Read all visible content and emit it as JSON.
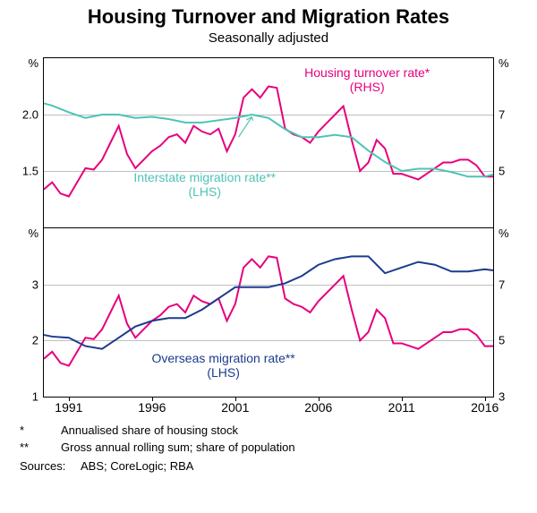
{
  "title": "Housing Turnover and Migration Rates",
  "subtitle": "Seasonally adjusted",
  "x_axis": {
    "min": 1989.5,
    "max": 2016.5,
    "ticks": [
      1991,
      1996,
      2001,
      2006,
      2011,
      2016
    ]
  },
  "panels": [
    {
      "id": "top",
      "left_axis": {
        "unit": "%",
        "min": 1.0,
        "max": 2.5,
        "ticks": [
          1.5,
          2.0
        ]
      },
      "right_axis": {
        "unit": "%",
        "min": 3.0,
        "max": 9.0,
        "ticks": [
          5,
          7
        ]
      },
      "gridlines_pct_from_top": [
        33.33,
        66.67
      ],
      "series": [
        {
          "name": "Housing turnover rate* (RHS)",
          "label_html": "Housing turnover rate*<br>(RHS)",
          "axis": "right",
          "color": "#e6007e",
          "width": 2,
          "label_pos": {
            "left_pct": 58,
            "top_pct": 4
          },
          "points": [
            [
              1989.5,
              4.35
            ],
            [
              1990,
              4.6
            ],
            [
              1990.5,
              4.2
            ],
            [
              1991,
              4.1
            ],
            [
              1991.5,
              4.6
            ],
            [
              1992,
              5.1
            ],
            [
              1992.5,
              5.05
            ],
            [
              1993,
              5.4
            ],
            [
              1993.5,
              6.0
            ],
            [
              1994,
              6.6
            ],
            [
              1994.5,
              5.6
            ],
            [
              1995,
              5.1
            ],
            [
              1995.5,
              5.4
            ],
            [
              1996,
              5.7
            ],
            [
              1996.5,
              5.9
            ],
            [
              1997,
              6.2
            ],
            [
              1997.5,
              6.3
            ],
            [
              1998,
              6.0
            ],
            [
              1998.5,
              6.6
            ],
            [
              1999,
              6.4
            ],
            [
              1999.5,
              6.3
            ],
            [
              2000,
              6.5
            ],
            [
              2000.5,
              5.7
            ],
            [
              2001,
              6.3
            ],
            [
              2001.5,
              7.6
            ],
            [
              2002,
              7.9
            ],
            [
              2002.5,
              7.6
            ],
            [
              2003,
              8.0
            ],
            [
              2003.5,
              7.95
            ],
            [
              2004,
              6.5
            ],
            [
              2004.5,
              6.3
            ],
            [
              2005,
              6.2
            ],
            [
              2005.5,
              6.0
            ],
            [
              2006,
              6.4
            ],
            [
              2006.5,
              6.7
            ],
            [
              2007,
              7.0
            ],
            [
              2007.5,
              7.3
            ],
            [
              2008,
              6.1
            ],
            [
              2008.5,
              5.0
            ],
            [
              2009,
              5.3
            ],
            [
              2009.5,
              6.1
            ],
            [
              2010,
              5.8
            ],
            [
              2010.5,
              4.9
            ],
            [
              2011,
              4.9
            ],
            [
              2011.5,
              4.8
            ],
            [
              2012,
              4.7
            ],
            [
              2012.5,
              4.9
            ],
            [
              2013,
              5.1
            ],
            [
              2013.5,
              5.3
            ],
            [
              2014,
              5.3
            ],
            [
              2014.5,
              5.4
            ],
            [
              2015,
              5.4
            ],
            [
              2015.5,
              5.2
            ],
            [
              2016,
              4.8
            ],
            [
              2016.5,
              4.8
            ]
          ]
        },
        {
          "name": "Interstate migration rate** (LHS)",
          "label_html": "Interstate migration rate**<br>(LHS)",
          "axis": "left",
          "color": "#4ec3b5",
          "width": 2,
          "label_pos": {
            "left_pct": 20,
            "top_pct": 66
          },
          "arrow": {
            "from": [
              2001.2,
              1.8
            ],
            "to": [
              2002.0,
              1.98
            ]
          },
          "points": [
            [
              1989.5,
              2.1
            ],
            [
              1990,
              2.08
            ],
            [
              1991,
              2.02
            ],
            [
              1992,
              1.97
            ],
            [
              1993,
              2.0
            ],
            [
              1994,
              2.0
            ],
            [
              1995,
              1.97
            ],
            [
              1996,
              1.98
            ],
            [
              1997,
              1.96
            ],
            [
              1998,
              1.93
            ],
            [
              1999,
              1.93
            ],
            [
              2000,
              1.95
            ],
            [
              2001,
              1.97
            ],
            [
              2002,
              2.0
            ],
            [
              2003,
              1.97
            ],
            [
              2004,
              1.87
            ],
            [
              2005,
              1.8
            ],
            [
              2006,
              1.8
            ],
            [
              2007,
              1.82
            ],
            [
              2008,
              1.8
            ],
            [
              2009,
              1.68
            ],
            [
              2010,
              1.58
            ],
            [
              2011,
              1.5
            ],
            [
              2012,
              1.52
            ],
            [
              2013,
              1.52
            ],
            [
              2014,
              1.49
            ],
            [
              2015,
              1.45
            ],
            [
              2016,
              1.45
            ],
            [
              2016.5,
              1.47
            ]
          ]
        }
      ]
    },
    {
      "id": "bottom",
      "left_axis": {
        "unit": "%",
        "min": 1.0,
        "max": 4.0,
        "ticks": [
          1,
          2,
          3
        ]
      },
      "right_axis": {
        "unit": "%",
        "min": 3.0,
        "max": 9.0,
        "ticks": [
          3,
          5,
          7
        ]
      },
      "gridlines_pct_from_top": [
        33.33,
        66.67
      ],
      "series": [
        {
          "name": "Housing turnover rate (RHS) bottom",
          "axis": "right",
          "color": "#e6007e",
          "width": 2,
          "points": [
            [
              1989.5,
              4.35
            ],
            [
              1990,
              4.6
            ],
            [
              1990.5,
              4.2
            ],
            [
              1991,
              4.1
            ],
            [
              1991.5,
              4.6
            ],
            [
              1992,
              5.1
            ],
            [
              1992.5,
              5.05
            ],
            [
              1993,
              5.4
            ],
            [
              1993.5,
              6.0
            ],
            [
              1994,
              6.6
            ],
            [
              1994.5,
              5.6
            ],
            [
              1995,
              5.1
            ],
            [
              1995.5,
              5.4
            ],
            [
              1996,
              5.7
            ],
            [
              1996.5,
              5.9
            ],
            [
              1997,
              6.2
            ],
            [
              1997.5,
              6.3
            ],
            [
              1998,
              6.0
            ],
            [
              1998.5,
              6.6
            ],
            [
              1999,
              6.4
            ],
            [
              1999.5,
              6.3
            ],
            [
              2000,
              6.5
            ],
            [
              2000.5,
              5.7
            ],
            [
              2001,
              6.3
            ],
            [
              2001.5,
              7.6
            ],
            [
              2002,
              7.9
            ],
            [
              2002.5,
              7.6
            ],
            [
              2003,
              8.0
            ],
            [
              2003.5,
              7.95
            ],
            [
              2004,
              6.5
            ],
            [
              2004.5,
              6.3
            ],
            [
              2005,
              6.2
            ],
            [
              2005.5,
              6.0
            ],
            [
              2006,
              6.4
            ],
            [
              2006.5,
              6.7
            ],
            [
              2007,
              7.0
            ],
            [
              2007.5,
              7.3
            ],
            [
              2008,
              6.1
            ],
            [
              2008.5,
              5.0
            ],
            [
              2009,
              5.3
            ],
            [
              2009.5,
              6.1
            ],
            [
              2010,
              5.8
            ],
            [
              2010.5,
              4.9
            ],
            [
              2011,
              4.9
            ],
            [
              2011.5,
              4.8
            ],
            [
              2012,
              4.7
            ],
            [
              2012.5,
              4.9
            ],
            [
              2013,
              5.1
            ],
            [
              2013.5,
              5.3
            ],
            [
              2014,
              5.3
            ],
            [
              2014.5,
              5.4
            ],
            [
              2015,
              5.4
            ],
            [
              2015.5,
              5.2
            ],
            [
              2016,
              4.8
            ],
            [
              2016.5,
              4.8
            ]
          ]
        },
        {
          "name": "Overseas migration rate** (LHS)",
          "label_html": "Overseas migration rate**<br>(LHS)",
          "axis": "left",
          "color": "#1b3b8c",
          "width": 2,
          "label_pos": {
            "left_pct": 24,
            "top_pct": 73
          },
          "points": [
            [
              1989.5,
              2.1
            ],
            [
              1990,
              2.07
            ],
            [
              1991,
              2.05
            ],
            [
              1992,
              1.9
            ],
            [
              1993,
              1.85
            ],
            [
              1994,
              2.05
            ],
            [
              1995,
              2.25
            ],
            [
              1996,
              2.35
            ],
            [
              1997,
              2.4
            ],
            [
              1998,
              2.4
            ],
            [
              1999,
              2.55
            ],
            [
              2000,
              2.75
            ],
            [
              2001,
              2.95
            ],
            [
              2002,
              2.95
            ],
            [
              2003,
              2.95
            ],
            [
              2004,
              3.02
            ],
            [
              2005,
              3.15
            ],
            [
              2006,
              3.35
            ],
            [
              2007,
              3.45
            ],
            [
              2008,
              3.5
            ],
            [
              2009,
              3.5
            ],
            [
              2010,
              3.2
            ],
            [
              2011,
              3.3
            ],
            [
              2012,
              3.4
            ],
            [
              2013,
              3.35
            ],
            [
              2014,
              3.23
            ],
            [
              2015,
              3.23
            ],
            [
              2016,
              3.27
            ],
            [
              2016.5,
              3.25
            ]
          ]
        }
      ]
    }
  ],
  "footnotes": [
    {
      "mark": "*",
      "text": "Annualised share of housing stock"
    },
    {
      "mark": "**",
      "text": "Gross annual rolling sum; share of population"
    }
  ],
  "sources": "ABS; CoreLogic; RBA",
  "sources_label": "Sources:"
}
